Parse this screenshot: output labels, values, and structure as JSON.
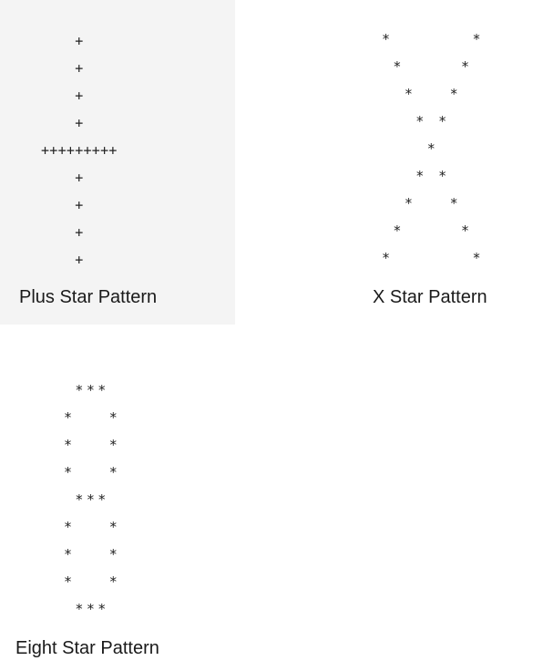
{
  "patterns": [
    {
      "id": "plus",
      "caption": "Plus Star Pattern",
      "art": "    +\n    +\n    +\n    +\n+++++++++\n    +\n    +\n    +\n    +"
    },
    {
      "id": "x",
      "caption": "X Star Pattern",
      "art": "*       *\n *     *\n  *   *\n   * *\n    *\n   * *\n  *   *\n *     *\n*       *"
    },
    {
      "id": "eight",
      "caption": "Eight Star Pattern",
      "art": " ***\n*   *\n*   *\n*   *\n ***\n*   *\n*   *\n*   *\n ***"
    }
  ],
  "colors": {
    "selected_card_background": "#f4f4f4",
    "page_background": "#ffffff",
    "text": "#1a1a1a"
  }
}
